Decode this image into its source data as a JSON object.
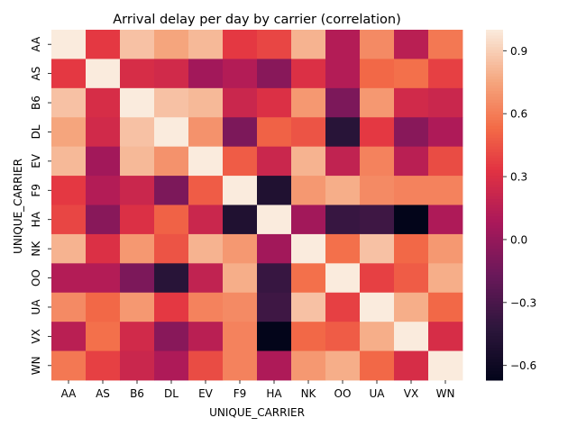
{
  "chart_data": {
    "type": "heatmap",
    "title": "Arrival delay per day by carrier (correlation)",
    "xlabel": "UNIQUE_CARRIER",
    "ylabel": "UNIQUE_CARRIER",
    "x_categories": [
      "AA",
      "AS",
      "B6",
      "DL",
      "EV",
      "F9",
      "HA",
      "NK",
      "OO",
      "UA",
      "VX",
      "WN"
    ],
    "y_categories": [
      "AA",
      "AS",
      "B6",
      "DL",
      "EV",
      "F9",
      "HA",
      "NK",
      "OO",
      "UA",
      "VX",
      "WN"
    ],
    "values": [
      [
        1.0,
        0.35,
        0.85,
        0.75,
        0.82,
        0.35,
        0.4,
        0.8,
        0.12,
        0.65,
        0.15,
        0.58
      ],
      [
        0.35,
        1.0,
        0.28,
        0.25,
        0.05,
        0.12,
        -0.05,
        0.3,
        0.12,
        0.52,
        0.55,
        0.38
      ],
      [
        0.85,
        0.28,
        1.0,
        0.85,
        0.82,
        0.22,
        0.3,
        0.7,
        -0.1,
        0.7,
        0.25,
        0.22
      ],
      [
        0.75,
        0.25,
        0.85,
        1.0,
        0.68,
        -0.1,
        0.5,
        0.45,
        -0.45,
        0.35,
        -0.05,
        0.1
      ],
      [
        0.82,
        0.05,
        0.82,
        0.68,
        1.0,
        0.48,
        0.22,
        0.8,
        0.18,
        0.62,
        0.15,
        0.42
      ],
      [
        0.35,
        0.12,
        0.22,
        -0.1,
        0.48,
        1.0,
        -0.5,
        0.7,
        0.78,
        0.65,
        0.62,
        0.62
      ],
      [
        0.4,
        -0.05,
        0.3,
        0.5,
        0.22,
        -0.5,
        1.0,
        0.05,
        -0.38,
        -0.35,
        -0.67,
        0.1
      ],
      [
        0.8,
        0.3,
        0.7,
        0.45,
        0.8,
        0.7,
        0.05,
        1.0,
        0.55,
        0.85,
        0.52,
        0.7
      ],
      [
        0.12,
        0.12,
        -0.1,
        -0.45,
        0.18,
        0.78,
        -0.38,
        0.55,
        1.0,
        0.38,
        0.48,
        0.78
      ],
      [
        0.65,
        0.52,
        0.7,
        0.35,
        0.62,
        0.65,
        -0.35,
        0.85,
        0.38,
        1.0,
        0.78,
        0.52
      ],
      [
        0.15,
        0.55,
        0.25,
        -0.05,
        0.15,
        0.62,
        -0.67,
        0.52,
        0.48,
        0.78,
        1.0,
        0.28
      ],
      [
        0.58,
        0.38,
        0.22,
        0.1,
        0.42,
        0.62,
        0.1,
        0.7,
        0.78,
        0.52,
        0.28,
        1.0
      ]
    ],
    "vmin": -0.67,
    "vmax": 1.0,
    "colormap": "rocket",
    "colorbar_ticks": [
      -0.6,
      -0.3,
      0.0,
      0.3,
      0.6,
      0.9
    ],
    "colorbar_tick_labels": [
      "−0.6",
      "−0.3",
      "0.0",
      "0.3",
      "0.6",
      "0.9"
    ]
  }
}
